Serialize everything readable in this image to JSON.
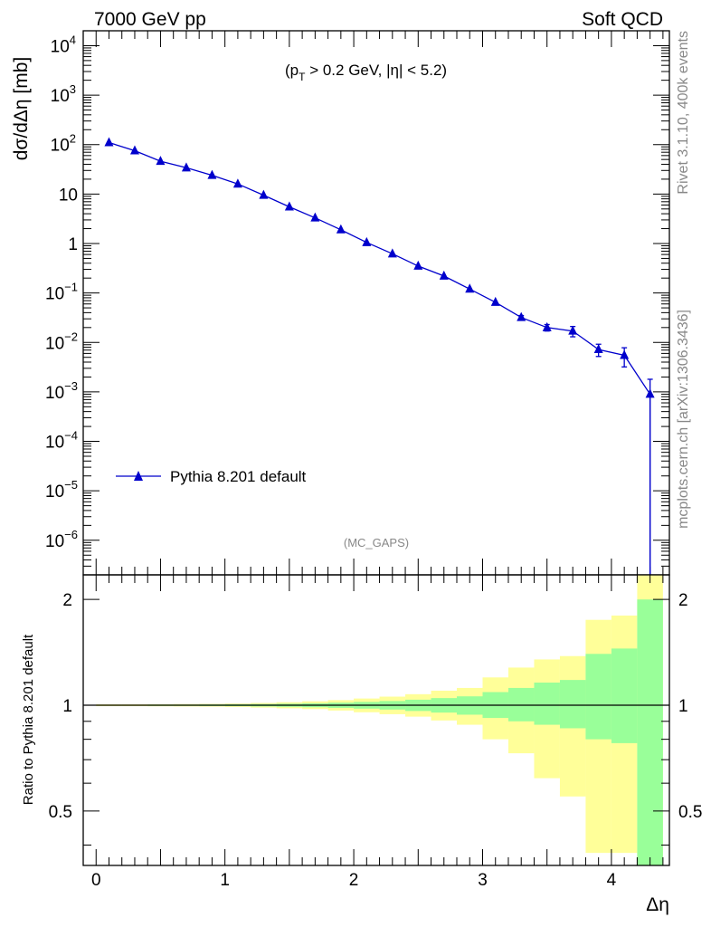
{
  "header": {
    "left": "7000 GeV pp",
    "right": "Soft QCD"
  },
  "side_text": {
    "rivet": "Rivet 3.1.10,  400k events",
    "mcplots": "mcplots.cern.ch [arXiv:1306.3436]"
  },
  "chart_data": [
    {
      "type": "line",
      "panel": "main",
      "ylabel": "dσ/dΔη [mb]",
      "annotation": "(p_T > 0.2 GeV, |η| < 5.2)",
      "analysis_label": "(MC_GAPS)",
      "y_scale": "log",
      "ylim": [
        2e-07,
        20000
      ],
      "xlim": [
        -0.1,
        4.45
      ],
      "legend": {
        "placement": "bottom-left"
      },
      "series": [
        {
          "name": "Pythia 8.201 default",
          "color": "#0000cc",
          "marker": "triangle",
          "x": [
            0.1,
            0.3,
            0.5,
            0.7,
            0.9,
            1.1,
            1.3,
            1.5,
            1.7,
            1.9,
            2.1,
            2.3,
            2.5,
            2.7,
            2.9,
            3.1,
            3.3,
            3.5,
            3.7,
            3.9,
            4.1,
            4.3
          ],
          "y": [
            110,
            75,
            46,
            34,
            24,
            16,
            9.5,
            5.5,
            3.3,
            1.9,
            1.05,
            0.62,
            0.35,
            0.22,
            0.12,
            0.065,
            0.032,
            0.02,
            0.017,
            0.0072,
            0.0055,
            0.0009
          ],
          "y_err_low": [
            0,
            0,
            0,
            0,
            0,
            0,
            0,
            0,
            0,
            0,
            0,
            0,
            0,
            0,
            0,
            0,
            0.003,
            0.003,
            0.004,
            0.002,
            0.0023,
            0.0009
          ],
          "y_err_high": [
            0,
            0,
            0,
            0,
            0,
            0,
            0,
            0,
            0,
            0,
            0,
            0,
            0,
            0,
            0,
            0,
            0.003,
            0.003,
            0.004,
            0.002,
            0.0023,
            0.0009
          ]
        }
      ],
      "y_ticks": [
        {
          "value": 1e-06,
          "label": "10",
          "exp": "−6"
        },
        {
          "value": 1e-05,
          "label": "10",
          "exp": "−5"
        },
        {
          "value": 0.0001,
          "label": "10",
          "exp": "−4"
        },
        {
          "value": 0.001,
          "label": "10",
          "exp": "−3"
        },
        {
          "value": 0.01,
          "label": "10",
          "exp": "−2"
        },
        {
          "value": 0.1,
          "label": "10",
          "exp": "−1"
        },
        {
          "value": 1,
          "label": "1",
          "exp": ""
        },
        {
          "value": 10,
          "label": "10",
          "exp": ""
        },
        {
          "value": 100,
          "label": "10",
          "exp": "2"
        },
        {
          "value": 1000,
          "label": "10",
          "exp": "3"
        },
        {
          "value": 10000,
          "label": "10",
          "exp": "4"
        }
      ]
    },
    {
      "type": "area",
      "panel": "ratio",
      "ylabel": "Ratio to Pythia 8.201 default",
      "xlabel": "Δη",
      "y_scale": "log",
      "ylim": [
        0.35,
        2.35
      ],
      "xlim": [
        -0.1,
        4.45
      ],
      "bin_edges": [
        0.0,
        0.2,
        0.4,
        0.6,
        0.8,
        1.0,
        1.2,
        1.4,
        1.6,
        1.8,
        2.0,
        2.2,
        2.4,
        2.6,
        2.8,
        3.0,
        3.2,
        3.4,
        3.6,
        3.8,
        4.0,
        4.2,
        4.4
      ],
      "band_inner": {
        "color": "#99ff99",
        "low": [
          0.997,
          0.997,
          0.996,
          0.996,
          0.995,
          0.994,
          0.992,
          0.99,
          0.987,
          0.983,
          0.978,
          0.972,
          0.963,
          0.953,
          0.94,
          0.92,
          0.9,
          0.88,
          0.86,
          0.8,
          0.78,
          0.0
        ],
        "high": [
          1.003,
          1.003,
          1.004,
          1.004,
          1.005,
          1.006,
          1.008,
          1.01,
          1.013,
          1.017,
          1.022,
          1.028,
          1.037,
          1.048,
          1.06,
          1.09,
          1.12,
          1.16,
          1.18,
          1.4,
          1.45,
          2.0
        ]
      },
      "band_outer": {
        "color": "#ffff99",
        "low": [
          0.994,
          0.994,
          0.993,
          0.992,
          0.991,
          0.989,
          0.985,
          0.98,
          0.975,
          0.966,
          0.955,
          0.943,
          0.928,
          0.905,
          0.88,
          0.8,
          0.73,
          0.62,
          0.55,
          0.38,
          0.38,
          0.0
        ],
        "high": [
          1.006,
          1.006,
          1.007,
          1.008,
          1.009,
          1.011,
          1.015,
          1.02,
          1.026,
          1.034,
          1.045,
          1.058,
          1.075,
          1.1,
          1.12,
          1.2,
          1.28,
          1.35,
          1.38,
          1.75,
          1.8,
          3.0
        ]
      },
      "reference_line": 1.0,
      "y_ticks": [
        {
          "value": 0.5,
          "label": "0.5"
        },
        {
          "value": 1,
          "label": "1"
        },
        {
          "value": 2,
          "label": "2"
        }
      ],
      "x_ticks": [
        {
          "value": 0,
          "label": "0"
        },
        {
          "value": 1,
          "label": "1"
        },
        {
          "value": 2,
          "label": "2"
        },
        {
          "value": 3,
          "label": "3"
        },
        {
          "value": 4,
          "label": "4"
        }
      ]
    }
  ]
}
